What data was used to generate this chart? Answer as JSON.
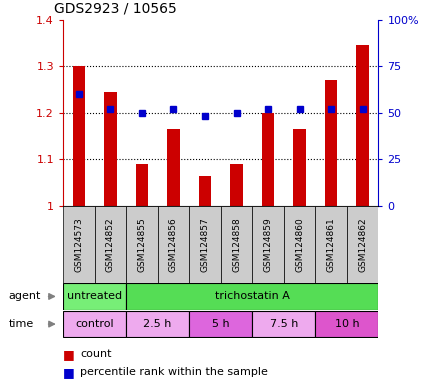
{
  "title": "GDS2923 / 10565",
  "samples": [
    "GSM124573",
    "GSM124852",
    "GSM124855",
    "GSM124856",
    "GSM124857",
    "GSM124858",
    "GSM124859",
    "GSM124860",
    "GSM124861",
    "GSM124862"
  ],
  "count_values": [
    1.3,
    1.245,
    1.09,
    1.165,
    1.065,
    1.09,
    1.2,
    1.165,
    1.27,
    1.345
  ],
  "percentile_values": [
    60,
    52,
    50,
    52,
    48,
    50,
    52,
    52,
    52,
    52
  ],
  "ylim_left": [
    1.0,
    1.4
  ],
  "ylim_right": [
    0,
    100
  ],
  "yticks_left": [
    1.0,
    1.1,
    1.2,
    1.3,
    1.4
  ],
  "yticks_right": [
    0,
    25,
    50,
    75,
    100
  ],
  "ytick_labels_left": [
    "1",
    "1.1",
    "1.2",
    "1.3",
    "1.4"
  ],
  "ytick_labels_right": [
    "0",
    "25",
    "50",
    "75",
    "100%"
  ],
  "bar_color": "#cc0000",
  "marker_color": "#0000cc",
  "agent_labels": [
    {
      "label": "untreated",
      "start": 0,
      "end": 2,
      "color": "#77ee77"
    },
    {
      "label": "trichostatin A",
      "start": 2,
      "end": 10,
      "color": "#55dd55"
    }
  ],
  "time_labels": [
    {
      "label": "control",
      "start": 0,
      "end": 2,
      "color": "#eeaaee"
    },
    {
      "label": "2.5 h",
      "start": 2,
      "end": 4,
      "color": "#eeaaee"
    },
    {
      "label": "5 h",
      "start": 4,
      "end": 6,
      "color": "#dd66dd"
    },
    {
      "label": "7.5 h",
      "start": 6,
      "end": 8,
      "color": "#eeaaee"
    },
    {
      "label": "10 h",
      "start": 8,
      "end": 10,
      "color": "#dd55cc"
    }
  ],
  "grid_lines": [
    1.1,
    1.2,
    1.3
  ],
  "tick_area_color": "#cccccc",
  "n_samples": 10,
  "bar_width": 0.4
}
